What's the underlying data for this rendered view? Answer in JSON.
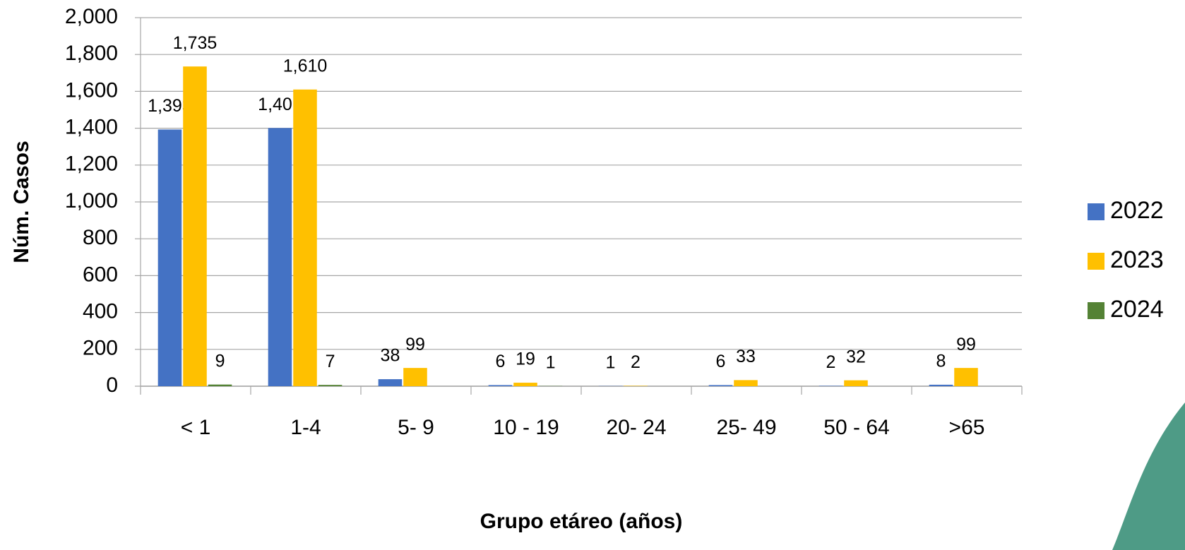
{
  "chart_data": {
    "type": "bar",
    "x_label": "Grupo etáreo (años)",
    "y_label": "Núm. Casos",
    "categories": [
      "< 1",
      "1-4",
      "5- 9",
      "10 - 19",
      "20- 24",
      "25- 49",
      "50 - 64",
      ">65"
    ],
    "series": [
      {
        "name": "2022",
        "color": "#4472c4",
        "values": [
          1393,
          1401,
          38,
          6,
          1,
          6,
          2,
          8
        ],
        "value_labels": [
          "1,393",
          "1,401",
          "38",
          "6",
          "1",
          "6",
          "2",
          "8"
        ]
      },
      {
        "name": "2023",
        "color": "#ffc000",
        "values": [
          1735,
          1610,
          99,
          19,
          2,
          33,
          32,
          99
        ],
        "value_labels": [
          "1,735",
          "1,610",
          "99",
          "19",
          "2",
          "33",
          "32",
          "99"
        ]
      },
      {
        "name": "2024",
        "color": "#548235",
        "values": [
          9,
          7,
          null,
          1,
          null,
          null,
          null,
          null
        ],
        "value_labels": [
          "9",
          "7",
          null,
          "1",
          null,
          null,
          null,
          null
        ]
      }
    ],
    "ylim": [
      0,
      2000
    ],
    "yticks": [
      0,
      200,
      400,
      600,
      800,
      {
        "value": 1000,
        "label": "1,000"
      },
      {
        "value": 1200,
        "label": "1,200"
      },
      {
        "value": 1400,
        "label": "1,400"
      },
      {
        "value": 1600,
        "label": "1,600"
      },
      {
        "value": 1800,
        "label": "1,800"
      },
      {
        "value": 2000,
        "label": "2,000"
      }
    ],
    "grid": true,
    "legend": "right"
  }
}
